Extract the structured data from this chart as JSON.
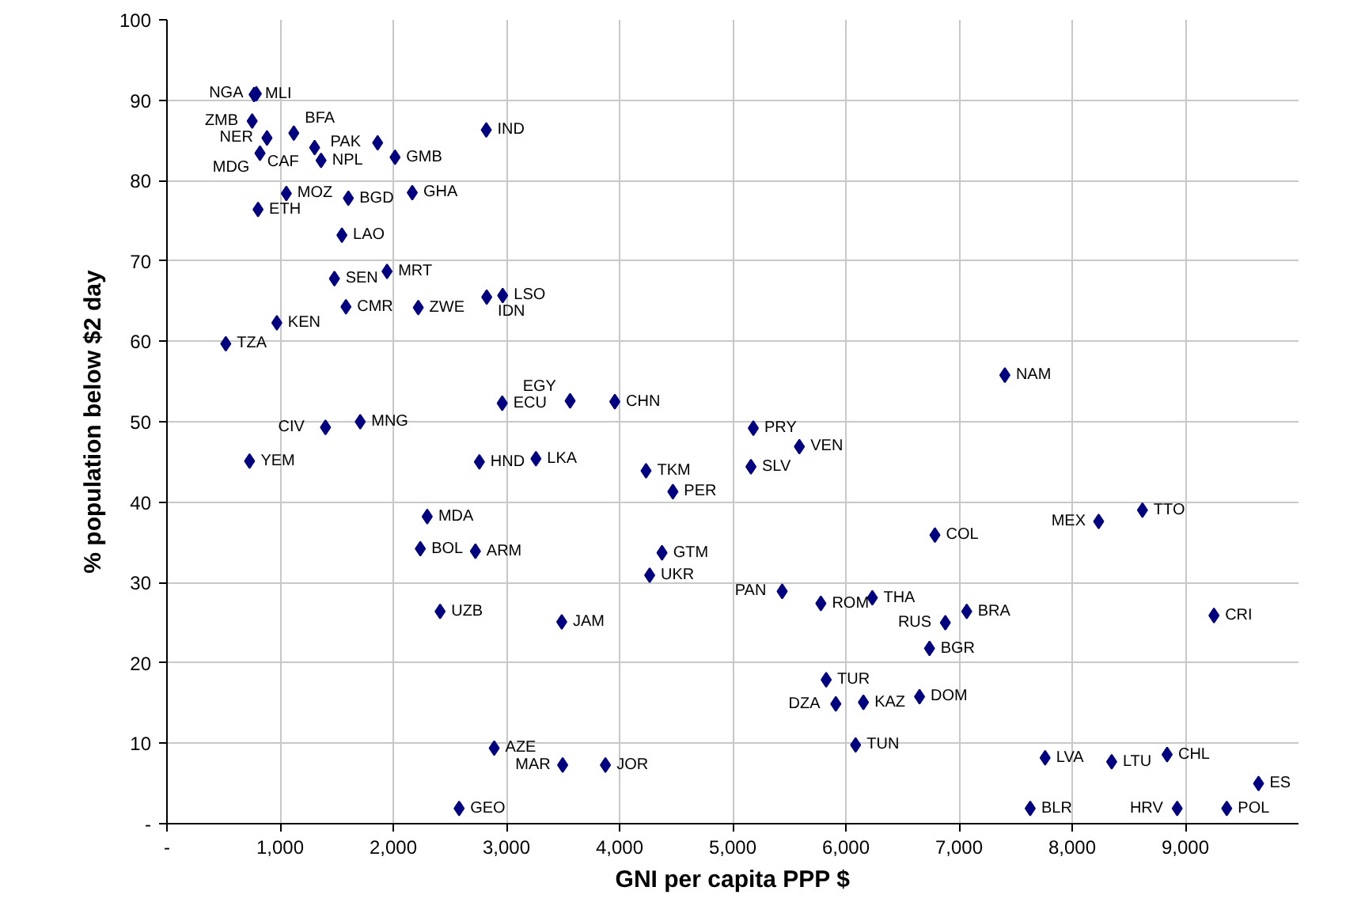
{
  "chart_data": {
    "type": "scatter",
    "xlabel": "GNI per capita PPP $",
    "ylabel": "% population below $2 day",
    "xlim": [
      0,
      10000
    ],
    "ylim": [
      0,
      100
    ],
    "xticks": [
      {
        "value": 0,
        "label": "-"
      },
      {
        "value": 1000,
        "label": "1,000"
      },
      {
        "value": 2000,
        "label": "2,000"
      },
      {
        "value": 3000,
        "label": "3,000"
      },
      {
        "value": 4000,
        "label": "4,000"
      },
      {
        "value": 5000,
        "label": "5,000"
      },
      {
        "value": 6000,
        "label": "6,000"
      },
      {
        "value": 7000,
        "label": "7,000"
      },
      {
        "value": 8000,
        "label": "8,000"
      },
      {
        "value": 9000,
        "label": "9,000"
      }
    ],
    "yticks": [
      {
        "value": 0,
        "label": "-"
      },
      10,
      20,
      30,
      40,
      50,
      60,
      70,
      80,
      90,
      100
    ],
    "grid": true,
    "marker": "diamond",
    "x": [
      770,
      790,
      753,
      884,
      1121,
      1305,
      822,
      1362,
      1862,
      2016,
      2822,
      2168,
      1055,
      1603,
      805,
      1546,
      1945,
      1480,
      1582,
      2221,
      2826,
      2967,
      971,
      520,
      2963,
      1401,
      1708,
      730,
      2761,
      2300,
      2239,
      2726,
      2414,
      2892,
      2582,
      3563,
      3958,
      3261,
      4234,
      4471,
      5182,
      5589,
      5161,
      4375,
      4266,
      5437,
      5779,
      6234,
      3489,
      5826,
      5911,
      6155,
      6086,
      3497,
      3875,
      7405,
      8621,
      8234,
      6787,
      7068,
      6879,
      6739,
      9253,
      6651,
      7761,
      8349,
      8839,
      9647,
      7629,
      8928,
      9366
    ],
    "series": [
      {
        "color": "#000080",
        "values": [
          90.7,
          90.8,
          87.4,
          85.3,
          85.9,
          84.1,
          83.4,
          82.5,
          84.7,
          82.9,
          86.3,
          78.5,
          78.4,
          77.8,
          76.4,
          73.2,
          68.7,
          67.8,
          64.3,
          64.2,
          65.5,
          65.7,
          62.3,
          59.7,
          52.3,
          49.3,
          50.0,
          45.1,
          45.0,
          38.2,
          34.2,
          33.9,
          26.4,
          9.4,
          1.9,
          52.6,
          52.5,
          45.4,
          43.9,
          41.3,
          49.2,
          46.9,
          44.4,
          33.7,
          30.9,
          28.9,
          27.4,
          28.1,
          25.1,
          17.9,
          14.9,
          15.1,
          9.8,
          7.3,
          7.3,
          55.8,
          39.0,
          37.6,
          35.9,
          26.4,
          25.0,
          21.8,
          25.9,
          15.8,
          8.2,
          7.7,
          8.6,
          5.0,
          1.9,
          1.9,
          1.9
        ]
      }
    ],
    "annotations": [
      {
        "text": "MLI",
        "x": 770,
        "y": 90.7
      },
      {
        "text": "NGA",
        "x": 790,
        "y": 90.8
      },
      {
        "text": "ZMB",
        "x": 753,
        "y": 87.4
      },
      {
        "text": "NER",
        "x": 884,
        "y": 85.3
      },
      {
        "text": "BFA",
        "x": 1121,
        "y": 85.9
      },
      {
        "text": "CAF",
        "x": 1305,
        "y": 84.1
      },
      {
        "text": "MDG",
        "x": 822,
        "y": 83.4
      },
      {
        "text": "NPL",
        "x": 1362,
        "y": 82.5
      },
      {
        "text": "PAK",
        "x": 1862,
        "y": 84.7
      },
      {
        "text": "GMB",
        "x": 2016,
        "y": 82.9
      },
      {
        "text": "IND",
        "x": 2822,
        "y": 86.3
      },
      {
        "text": "GHA",
        "x": 2168,
        "y": 78.5
      },
      {
        "text": "MOZ",
        "x": 1055,
        "y": 78.4
      },
      {
        "text": "BGD",
        "x": 1603,
        "y": 77.8
      },
      {
        "text": "ETH",
        "x": 805,
        "y": 76.4
      },
      {
        "text": "LAO",
        "x": 1546,
        "y": 73.2
      },
      {
        "text": "MRT",
        "x": 1945,
        "y": 68.7
      },
      {
        "text": "SEN",
        "x": 1480,
        "y": 67.8
      },
      {
        "text": "CMR",
        "x": 1582,
        "y": 64.3
      },
      {
        "text": "ZWE",
        "x": 2221,
        "y": 64.2
      },
      {
        "text": "IDN",
        "x": 2826,
        "y": 65.5
      },
      {
        "text": "LSO",
        "x": 2967,
        "y": 65.7
      },
      {
        "text": "KEN",
        "x": 971,
        "y": 62.3
      },
      {
        "text": "TZA",
        "x": 520,
        "y": 59.7
      },
      {
        "text": "ECU",
        "x": 2963,
        "y": 52.3
      },
      {
        "text": "CIV",
        "x": 1401,
        "y": 49.3
      },
      {
        "text": "MNG",
        "x": 1708,
        "y": 50.0
      },
      {
        "text": "YEM",
        "x": 730,
        "y": 45.1
      },
      {
        "text": "HND",
        "x": 2761,
        "y": 45.0
      },
      {
        "text": "MDA",
        "x": 2300,
        "y": 38.2
      },
      {
        "text": "BOL",
        "x": 2239,
        "y": 34.2
      },
      {
        "text": "ARM",
        "x": 2726,
        "y": 33.9
      },
      {
        "text": "UZB",
        "x": 2414,
        "y": 26.4
      },
      {
        "text": "AZE",
        "x": 2892,
        "y": 9.4
      },
      {
        "text": "GEO",
        "x": 2582,
        "y": 1.9
      },
      {
        "text": "EGY",
        "x": 3563,
        "y": 52.6
      },
      {
        "text": "CHN",
        "x": 3958,
        "y": 52.5
      },
      {
        "text": "LKA",
        "x": 3261,
        "y": 45.4
      },
      {
        "text": "TKM",
        "x": 4234,
        "y": 43.9
      },
      {
        "text": "PER",
        "x": 4471,
        "y": 41.3
      },
      {
        "text": "PRY",
        "x": 5182,
        "y": 49.2
      },
      {
        "text": "VEN",
        "x": 5589,
        "y": 46.9
      },
      {
        "text": "SLV",
        "x": 5161,
        "y": 44.4
      },
      {
        "text": "GTM",
        "x": 4375,
        "y": 33.7
      },
      {
        "text": "UKR",
        "x": 4266,
        "y": 30.9
      },
      {
        "text": "PAN",
        "x": 5437,
        "y": 28.9
      },
      {
        "text": "ROM",
        "x": 5779,
        "y": 27.4
      },
      {
        "text": "THA",
        "x": 6234,
        "y": 28.1
      },
      {
        "text": "JAM",
        "x": 3489,
        "y": 25.1
      },
      {
        "text": "TUR",
        "x": 5826,
        "y": 17.9
      },
      {
        "text": "DZA",
        "x": 5911,
        "y": 14.9
      },
      {
        "text": "KAZ",
        "x": 6155,
        "y": 15.1
      },
      {
        "text": "TUN",
        "x": 6086,
        "y": 9.8
      },
      {
        "text": "MAR",
        "x": 3497,
        "y": 7.3
      },
      {
        "text": "JOR",
        "x": 3875,
        "y": 7.3
      },
      {
        "text": "NAM",
        "x": 7405,
        "y": 55.8
      },
      {
        "text": "TTO",
        "x": 8621,
        "y": 39.0
      },
      {
        "text": "MEX",
        "x": 8234,
        "y": 37.6
      },
      {
        "text": "COL",
        "x": 6787,
        "y": 35.9
      },
      {
        "text": "BRA",
        "x": 7068,
        "y": 26.4
      },
      {
        "text": "RUS",
        "x": 6879,
        "y": 25.0
      },
      {
        "text": "BGR",
        "x": 6739,
        "y": 21.8
      },
      {
        "text": "CRI",
        "x": 9253,
        "y": 25.9
      },
      {
        "text": "DOM",
        "x": 6651,
        "y": 15.8
      },
      {
        "text": "LVA",
        "x": 7761,
        "y": 8.2
      },
      {
        "text": "LTU",
        "x": 8349,
        "y": 7.7
      },
      {
        "text": "CHL",
        "x": 8839,
        "y": 8.6
      },
      {
        "text": "ES",
        "x": 9647,
        "y": 5.0
      },
      {
        "text": "BLR",
        "x": 7629,
        "y": 1.9
      },
      {
        "text": "HRV",
        "x": 8928,
        "y": 1.9
      },
      {
        "text": "POL",
        "x": 9366,
        "y": 1.9
      }
    ]
  }
}
